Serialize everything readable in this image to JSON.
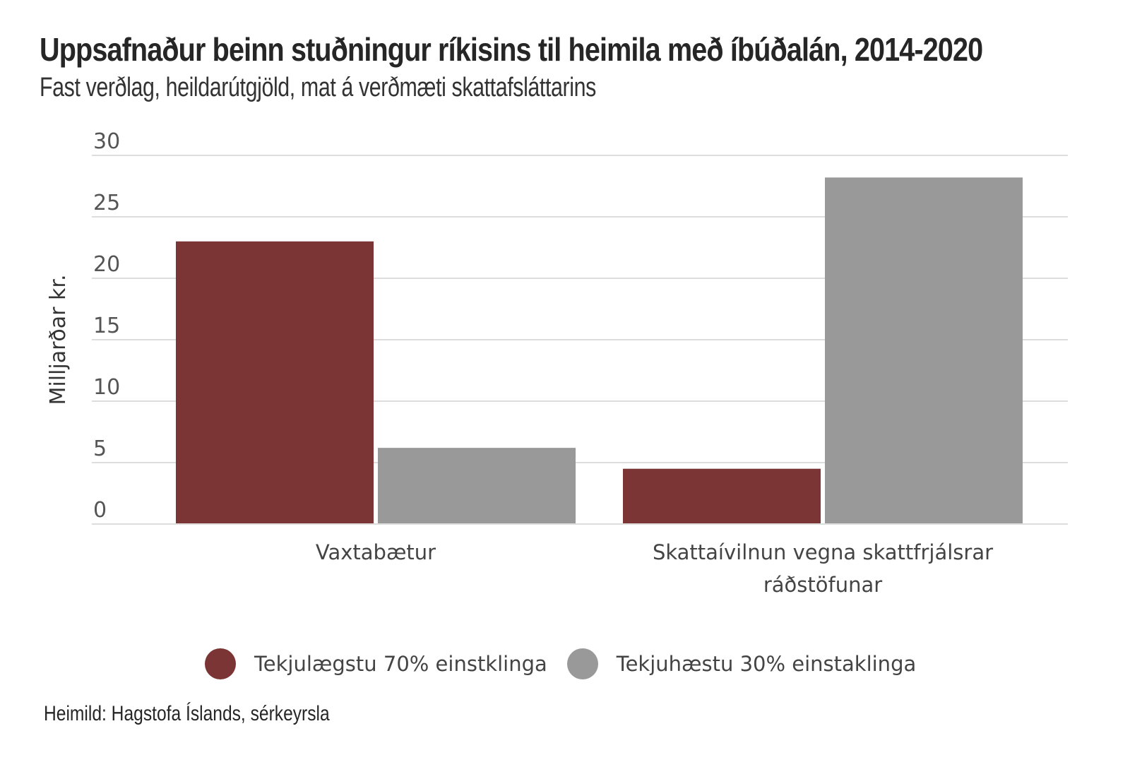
{
  "chart_data": {
    "type": "bar",
    "title": "Uppsafnaður beinn stuðningur ríkisins til heimila með íbúðalán, 2014-2020",
    "subtitle": "Fast verðlag, heildarútgjöld, mat á verðmæti skattafsláttarins",
    "ylabel": "Milljarðar kr.",
    "xlabel": "",
    "ylim": [
      0,
      30
    ],
    "yticks": [
      0,
      5,
      10,
      15,
      20,
      25,
      30
    ],
    "grid": true,
    "legend_position": "bottom",
    "categories": [
      [
        "Vaxtabætur"
      ],
      [
        "Skattaívilnun vegna skattfrjálsrar",
        "ráðstöfunar"
      ]
    ],
    "series": [
      {
        "name": "Tekjulægstu 70% einstklinga",
        "color": "#7b3535",
        "values": [
          23.0,
          4.5
        ]
      },
      {
        "name": "Tekjuhæstu 30% einstaklinga",
        "color": "#999999",
        "values": [
          6.2,
          28.2
        ]
      }
    ]
  },
  "source": "Heimild: Hagstofa Íslands, sérkeyrsla"
}
